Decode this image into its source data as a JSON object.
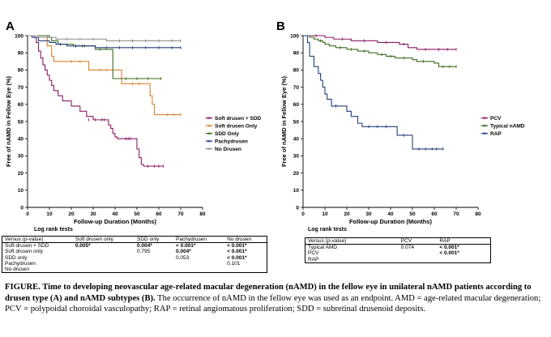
{
  "chart_data": [
    {
      "type": "line",
      "panel_label": "A",
      "xlabel": "Follow-up Duration (Months)",
      "ylabel": "Free of nAMD in Fellow Eye (%)",
      "xlim": [
        0,
        80
      ],
      "ylim": [
        0,
        100
      ],
      "x_ticks": [
        "0",
        "10",
        "20",
        "30",
        "40",
        "50",
        "60",
        "70",
        "80"
      ],
      "y_ticks": [
        "0",
        "10",
        "20",
        "30",
        "40",
        "50",
        "60",
        "70",
        "80",
        "90",
        "100"
      ],
      "legend_position": "right",
      "series": [
        {
          "name": "Soft drusen + SDD",
          "color": "#8b1a66",
          "steps": [
            [
              0,
              100
            ],
            [
              3,
              99
            ],
            [
              4,
              96
            ],
            [
              5,
              91
            ],
            [
              6,
              87
            ],
            [
              7,
              83
            ],
            [
              8,
              80
            ],
            [
              9,
              77
            ],
            [
              10,
              74
            ],
            [
              11,
              71
            ],
            [
              12,
              68
            ],
            [
              14,
              65
            ],
            [
              16,
              62
            ],
            [
              20,
              59
            ],
            [
              24,
              56
            ],
            [
              27,
              53
            ],
            [
              30,
              51
            ],
            [
              36,
              51
            ],
            [
              37,
              48
            ],
            [
              38,
              46
            ],
            [
              39,
              43
            ],
            [
              40,
              41
            ],
            [
              41,
              40
            ],
            [
              49,
              40
            ],
            [
              50,
              34
            ],
            [
              51,
              29
            ],
            [
              52,
              25
            ],
            [
              53,
              24
            ],
            [
              62,
              24
            ]
          ],
          "censor": [
            [
              28,
              51
            ],
            [
              31,
              51
            ],
            [
              34,
              51
            ],
            [
              35,
              51
            ],
            [
              45,
              40
            ],
            [
              46,
              40
            ],
            [
              47,
              40
            ],
            [
              55,
              24
            ],
            [
              58,
              24
            ],
            [
              60,
              24
            ],
            [
              62,
              24
            ]
          ]
        },
        {
          "name": "Soft drusen Only",
          "color": "#d9832e",
          "steps": [
            [
              0,
              100
            ],
            [
              8,
              100
            ],
            [
              9,
              94
            ],
            [
              11,
              88
            ],
            [
              12,
              85
            ],
            [
              27,
              85
            ],
            [
              28,
              80
            ],
            [
              42,
              80
            ],
            [
              43,
              72
            ],
            [
              55,
              72
            ],
            [
              56,
              65
            ],
            [
              57,
              60
            ],
            [
              58,
              54
            ],
            [
              70,
              54
            ]
          ],
          "censor": [
            [
              20,
              85
            ],
            [
              24,
              85
            ],
            [
              33,
              80
            ],
            [
              36,
              80
            ],
            [
              48,
              72
            ],
            [
              51,
              72
            ],
            [
              64,
              54
            ],
            [
              67,
              54
            ],
            [
              70,
              54
            ]
          ]
        },
        {
          "name": "SDD Only",
          "color": "#3d6b1e",
          "steps": [
            [
              0,
              100
            ],
            [
              10,
              99
            ],
            [
              11,
              97
            ],
            [
              14,
              95
            ],
            [
              20,
              95
            ],
            [
              21,
              94
            ],
            [
              30,
              94
            ],
            [
              31,
              92
            ],
            [
              38,
              92
            ],
            [
              39,
              75
            ],
            [
              61,
              75
            ]
          ],
          "censor": [
            [
              25,
              94
            ],
            [
              33,
              92
            ],
            [
              45,
              75
            ],
            [
              50,
              75
            ],
            [
              55,
              75
            ],
            [
              61,
              75
            ]
          ]
        },
        {
          "name": "Pachydrusen",
          "color": "#243f7a",
          "steps": [
            [
              0,
              100
            ],
            [
              2,
              99
            ],
            [
              5,
              97
            ],
            [
              10,
              96
            ],
            [
              13,
              95
            ],
            [
              18,
              94
            ],
            [
              30,
              94
            ],
            [
              31,
              93
            ],
            [
              70,
              93
            ]
          ],
          "censor": [
            [
              15,
              95
            ],
            [
              22,
              94
            ],
            [
              26,
              94
            ],
            [
              36,
              93
            ],
            [
              42,
              93
            ],
            [
              48,
              93
            ],
            [
              54,
              93
            ],
            [
              60,
              93
            ],
            [
              66,
              93
            ],
            [
              70,
              93
            ]
          ]
        },
        {
          "name": "No Drusen",
          "color": "#8c8c8c",
          "steps": [
            [
              0,
              100
            ],
            [
              5,
              99
            ],
            [
              12,
              99
            ],
            [
              13,
              98
            ],
            [
              35,
              98
            ],
            [
              36,
              97
            ],
            [
              70,
              97
            ]
          ],
          "censor": [
            [
              9,
              99
            ],
            [
              18,
              98
            ],
            [
              24,
              98
            ],
            [
              30,
              98
            ],
            [
              42,
              97
            ],
            [
              48,
              97
            ],
            [
              54,
              97
            ],
            [
              60,
              97
            ],
            [
              66,
              97
            ],
            [
              70,
              97
            ]
          ]
        }
      ]
    },
    {
      "type": "line",
      "panel_label": "B",
      "xlabel": "Follow-up Duration (Months)",
      "ylabel": "Free of nAMD in Fellow Eye (%)",
      "xlim": [
        0,
        80
      ],
      "ylim": [
        0,
        100
      ],
      "x_ticks": [
        "0",
        "10",
        "20",
        "30",
        "40",
        "50",
        "60",
        "70",
        "80"
      ],
      "y_ticks": [
        "0",
        "10",
        "20",
        "30",
        "40",
        "50",
        "60",
        "70",
        "80",
        "90",
        "100"
      ],
      "legend_position": "right",
      "series": [
        {
          "name": "PCV",
          "color": "#8b1a66",
          "steps": [
            [
              0,
              100
            ],
            [
              10,
              99
            ],
            [
              14,
              98
            ],
            [
              22,
              97
            ],
            [
              34,
              96
            ],
            [
              44,
              95
            ],
            [
              48,
              93
            ],
            [
              52,
              92
            ],
            [
              70,
              92
            ]
          ],
          "censor": [
            [
              6,
              100
            ],
            [
              18,
              98
            ],
            [
              28,
              97
            ],
            [
              38,
              96
            ],
            [
              46,
              95
            ],
            [
              56,
              92
            ],
            [
              62,
              92
            ],
            [
              66,
              92
            ],
            [
              70,
              92
            ]
          ]
        },
        {
          "name": "Typical nAMD",
          "color": "#3d6b1e",
          "steps": [
            [
              0,
              100
            ],
            [
              3,
              99
            ],
            [
              5,
              98
            ],
            [
              7,
              97
            ],
            [
              9,
              96
            ],
            [
              10,
              95
            ],
            [
              12,
              94
            ],
            [
              15,
              93
            ],
            [
              20,
              92
            ],
            [
              25,
              91
            ],
            [
              30,
              90
            ],
            [
              34,
              89
            ],
            [
              38,
              88
            ],
            [
              42,
              87
            ],
            [
              50,
              86
            ],
            [
              52,
              85
            ],
            [
              60,
              84
            ],
            [
              62,
              82
            ],
            [
              70,
              82
            ]
          ],
          "censor": [
            [
              8,
              97
            ],
            [
              17,
              93
            ],
            [
              22,
              92
            ],
            [
              28,
              91
            ],
            [
              36,
              89
            ],
            [
              40,
              88
            ],
            [
              46,
              87
            ],
            [
              55,
              85
            ],
            [
              64,
              82
            ],
            [
              67,
              82
            ],
            [
              70,
              82
            ]
          ]
        },
        {
          "name": "RAP",
          "color": "#243f7a",
          "steps": [
            [
              0,
              100
            ],
            [
              2,
              96
            ],
            [
              3,
              88
            ],
            [
              5,
              82
            ],
            [
              7,
              78
            ],
            [
              8,
              74
            ],
            [
              9,
              70
            ],
            [
              10,
              66
            ],
            [
              11,
              63
            ],
            [
              13,
              59
            ],
            [
              19,
              59
            ],
            [
              20,
              56
            ],
            [
              22,
              53
            ],
            [
              25,
              49
            ],
            [
              27,
              47
            ],
            [
              42,
              47
            ],
            [
              43,
              42
            ],
            [
              49,
              42
            ],
            [
              50,
              34
            ],
            [
              64,
              34
            ]
          ],
          "censor": [
            [
              15,
              59
            ],
            [
              30,
              47
            ],
            [
              34,
              47
            ],
            [
              38,
              47
            ],
            [
              46,
              42
            ],
            [
              53,
              34
            ],
            [
              56,
              34
            ],
            [
              59,
              34
            ],
            [
              61,
              34
            ],
            [
              64,
              34
            ]
          ]
        }
      ]
    }
  ],
  "tables": {
    "a": {
      "title": "Log rank tests",
      "header": [
        "Versus (p-value)",
        "Soft drusen only",
        "SDD only",
        "Pachydrusen",
        "No drusen"
      ],
      "rows": [
        [
          "Soft drusen + SDD",
          "0.005*",
          "0.004*",
          "< 0.001*",
          "< 0.001*"
        ],
        [
          "Soft drusen only",
          "",
          "0.795",
          "0.004*",
          "< 0.001*"
        ],
        [
          "SDD only",
          "",
          "",
          "0.053",
          "< 0.001*"
        ],
        [
          "Pachydrusen",
          "",
          "",
          "",
          "0.101"
        ],
        [
          "No drusen",
          "",
          "",
          "",
          ""
        ]
      ]
    },
    "b": {
      "title": "Log rank tests",
      "header": [
        "Versus (p-value)",
        "PCV",
        "RAP"
      ],
      "rows": [
        [
          "Typical AMD",
          "0.074",
          "< 0.001*"
        ],
        [
          "PCV",
          "",
          "< 0.001*"
        ],
        [
          "RAP",
          "",
          ""
        ]
      ]
    }
  },
  "caption": {
    "lead": "FIGURE. Time to developing neovascular age-related macular degeneration (nAMD) in the fellow eye in unilateral nAMD patients according to drusen type (A) and nAMD subtypes (B).",
    "body": " The occurrence of nAMD in the fellow eye was used as an endpoint. AMD = age-related macular degeneration; PCV = polypoidal choroidal vasculopathy; RAP = retinal angiomatous proliferation; SDD = subretinal drusenoid deposits."
  }
}
